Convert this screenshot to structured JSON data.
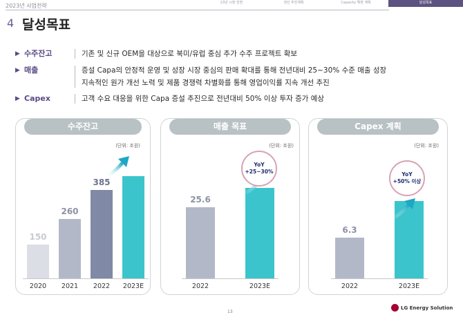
{
  "header": {
    "top_label": "2023년 사업전략",
    "nav_tabs": [
      "23년 시장 전망",
      "생산 추진계획",
      "Capacity 확장 계획"
    ],
    "nav_active": "달성목표",
    "section_number": "4",
    "section_title": "달성목표"
  },
  "goals": [
    {
      "label": "수주잔고",
      "lines": [
        "기존 및 신규 OEM을 대상으로 북미/유럽 중심 추가 수주 프로젝트 확보"
      ]
    },
    {
      "label": "매출",
      "lines": [
        "증설 Capa의 안정적 운영 및 성장 시장 중심의 판매 확대를 통해 전년대비 25~30% 수준 매출 성장",
        "지속적인 원가 개선 노력 및 제품 경쟁력 차별화를 통해 영업이익률 지속 개선 추진"
      ]
    },
    {
      "label": "Capex",
      "lines": [
        "고객 수요 대응을 위한 Capa 증설 추진으로 전년대비 50% 이상 투자 증가 예상"
      ]
    }
  ],
  "chart_data": [
    {
      "type": "bar",
      "title": "수주잔고",
      "unit": "(단위: 조원)",
      "categories": [
        "2020",
        "2021",
        "2022",
        "2023E"
      ],
      "values": [
        150,
        260,
        385,
        null
      ],
      "value_labels": [
        "150",
        "260",
        "385",
        ""
      ],
      "colors": [
        "#dcdee6",
        "#b3b8c9",
        "#8089a6",
        "#3cc4cc"
      ],
      "label_colors": [
        "#c9cbd3",
        "#8d92a4",
        "#6b7390",
        "#3cc4cc"
      ]
    },
    {
      "type": "bar",
      "title": "매출 목표",
      "unit": "(단위: 조원)",
      "categories": [
        "2022",
        "2023E"
      ],
      "values": [
        25.6,
        null
      ],
      "value_labels": [
        "25.6",
        ""
      ],
      "colors": [
        "#b3b8c9",
        "#3cc4cc"
      ],
      "label_colors": [
        "#8d92a4",
        "#3cc4cc"
      ],
      "badge": [
        "YoY",
        "+25~30%"
      ]
    },
    {
      "type": "bar",
      "title": "Capex 계획",
      "unit": "(단위: 조원)",
      "categories": [
        "2022",
        "2023E"
      ],
      "values": [
        6.3,
        null
      ],
      "value_labels": [
        "6.3",
        ""
      ],
      "colors": [
        "#b3b8c9",
        "#3cc4cc"
      ],
      "label_colors": [
        "#8d92a4",
        "#3cc4cc"
      ],
      "badge": [
        "YoY",
        "+50% 이상"
      ]
    }
  ],
  "footer": {
    "page_number": "13",
    "logo_text": "LG Energy Solution"
  }
}
